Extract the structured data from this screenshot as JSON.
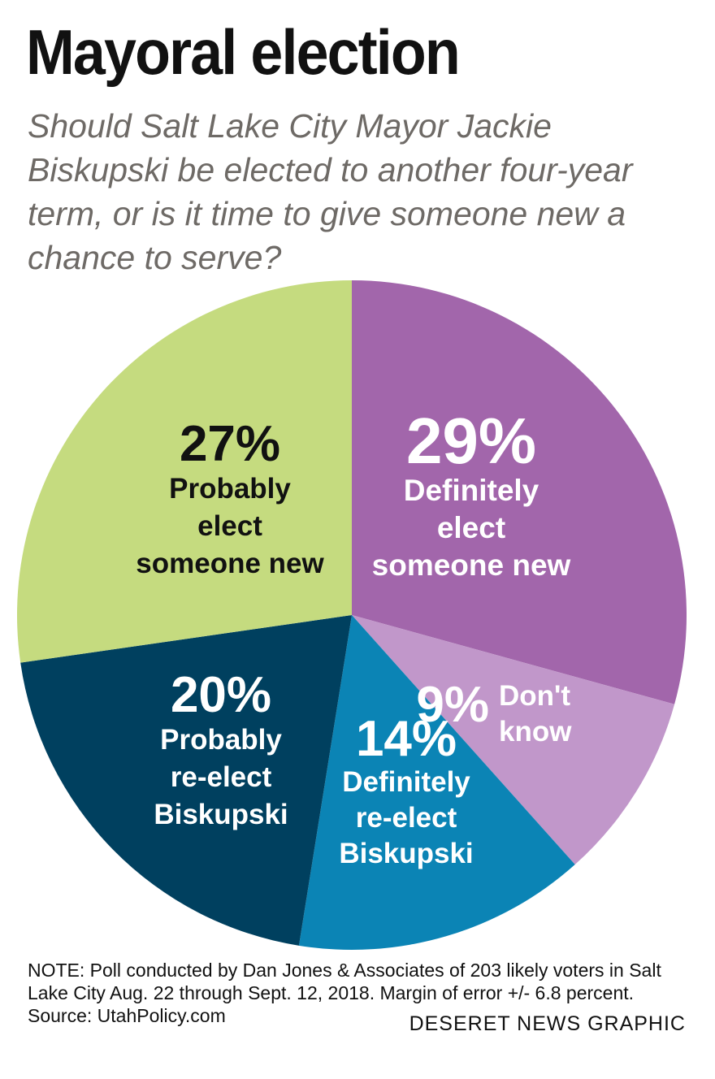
{
  "title": "Mayoral election",
  "subtitle": "Should Salt Lake City Mayor Jackie Biskupski be elected to another four-year term, or is it time to give someone new a chance to serve?",
  "note": {
    "line1": "NOTE: Poll conducted by Dan Jones & Associates of 203 likely voters in Salt",
    "line2": "Lake City Aug. 22 through Sept. 12, 2018. Margin of error +/- 6.8 percent.",
    "line3": "Source: UtahPolicy.com"
  },
  "credit": "DESERET NEWS GRAPHIC",
  "chart_data": {
    "type": "pie",
    "title": "Mayoral election",
    "unit": "%",
    "slices": [
      {
        "label": "Definitely elect someone new",
        "value": 29,
        "display": "29%",
        "label_lines": [
          "Definitely",
          "elect",
          "someone new"
        ],
        "color": "#a266ab"
      },
      {
        "label": "Don't know",
        "value": 9,
        "display": "9%",
        "label_lines": [
          "Don't",
          "know"
        ],
        "color": "#c197ca"
      },
      {
        "label": "Definitely re-elect Biskupski",
        "value": 14,
        "display": "14%",
        "label_lines": [
          "Definitely",
          "re-elect",
          "Biskupski"
        ],
        "color": "#0b84b5"
      },
      {
        "label": "Probably re-elect Biskupski",
        "value": 20,
        "display": "20%",
        "label_lines": [
          "Probably",
          "re-elect",
          "Biskupski"
        ],
        "color": "#00405f"
      },
      {
        "label": "Probably elect someone new",
        "value": 27,
        "display": "27%",
        "label_lines": [
          "Probably",
          "elect",
          "someone new"
        ],
        "color": "#c5db7f"
      }
    ]
  }
}
